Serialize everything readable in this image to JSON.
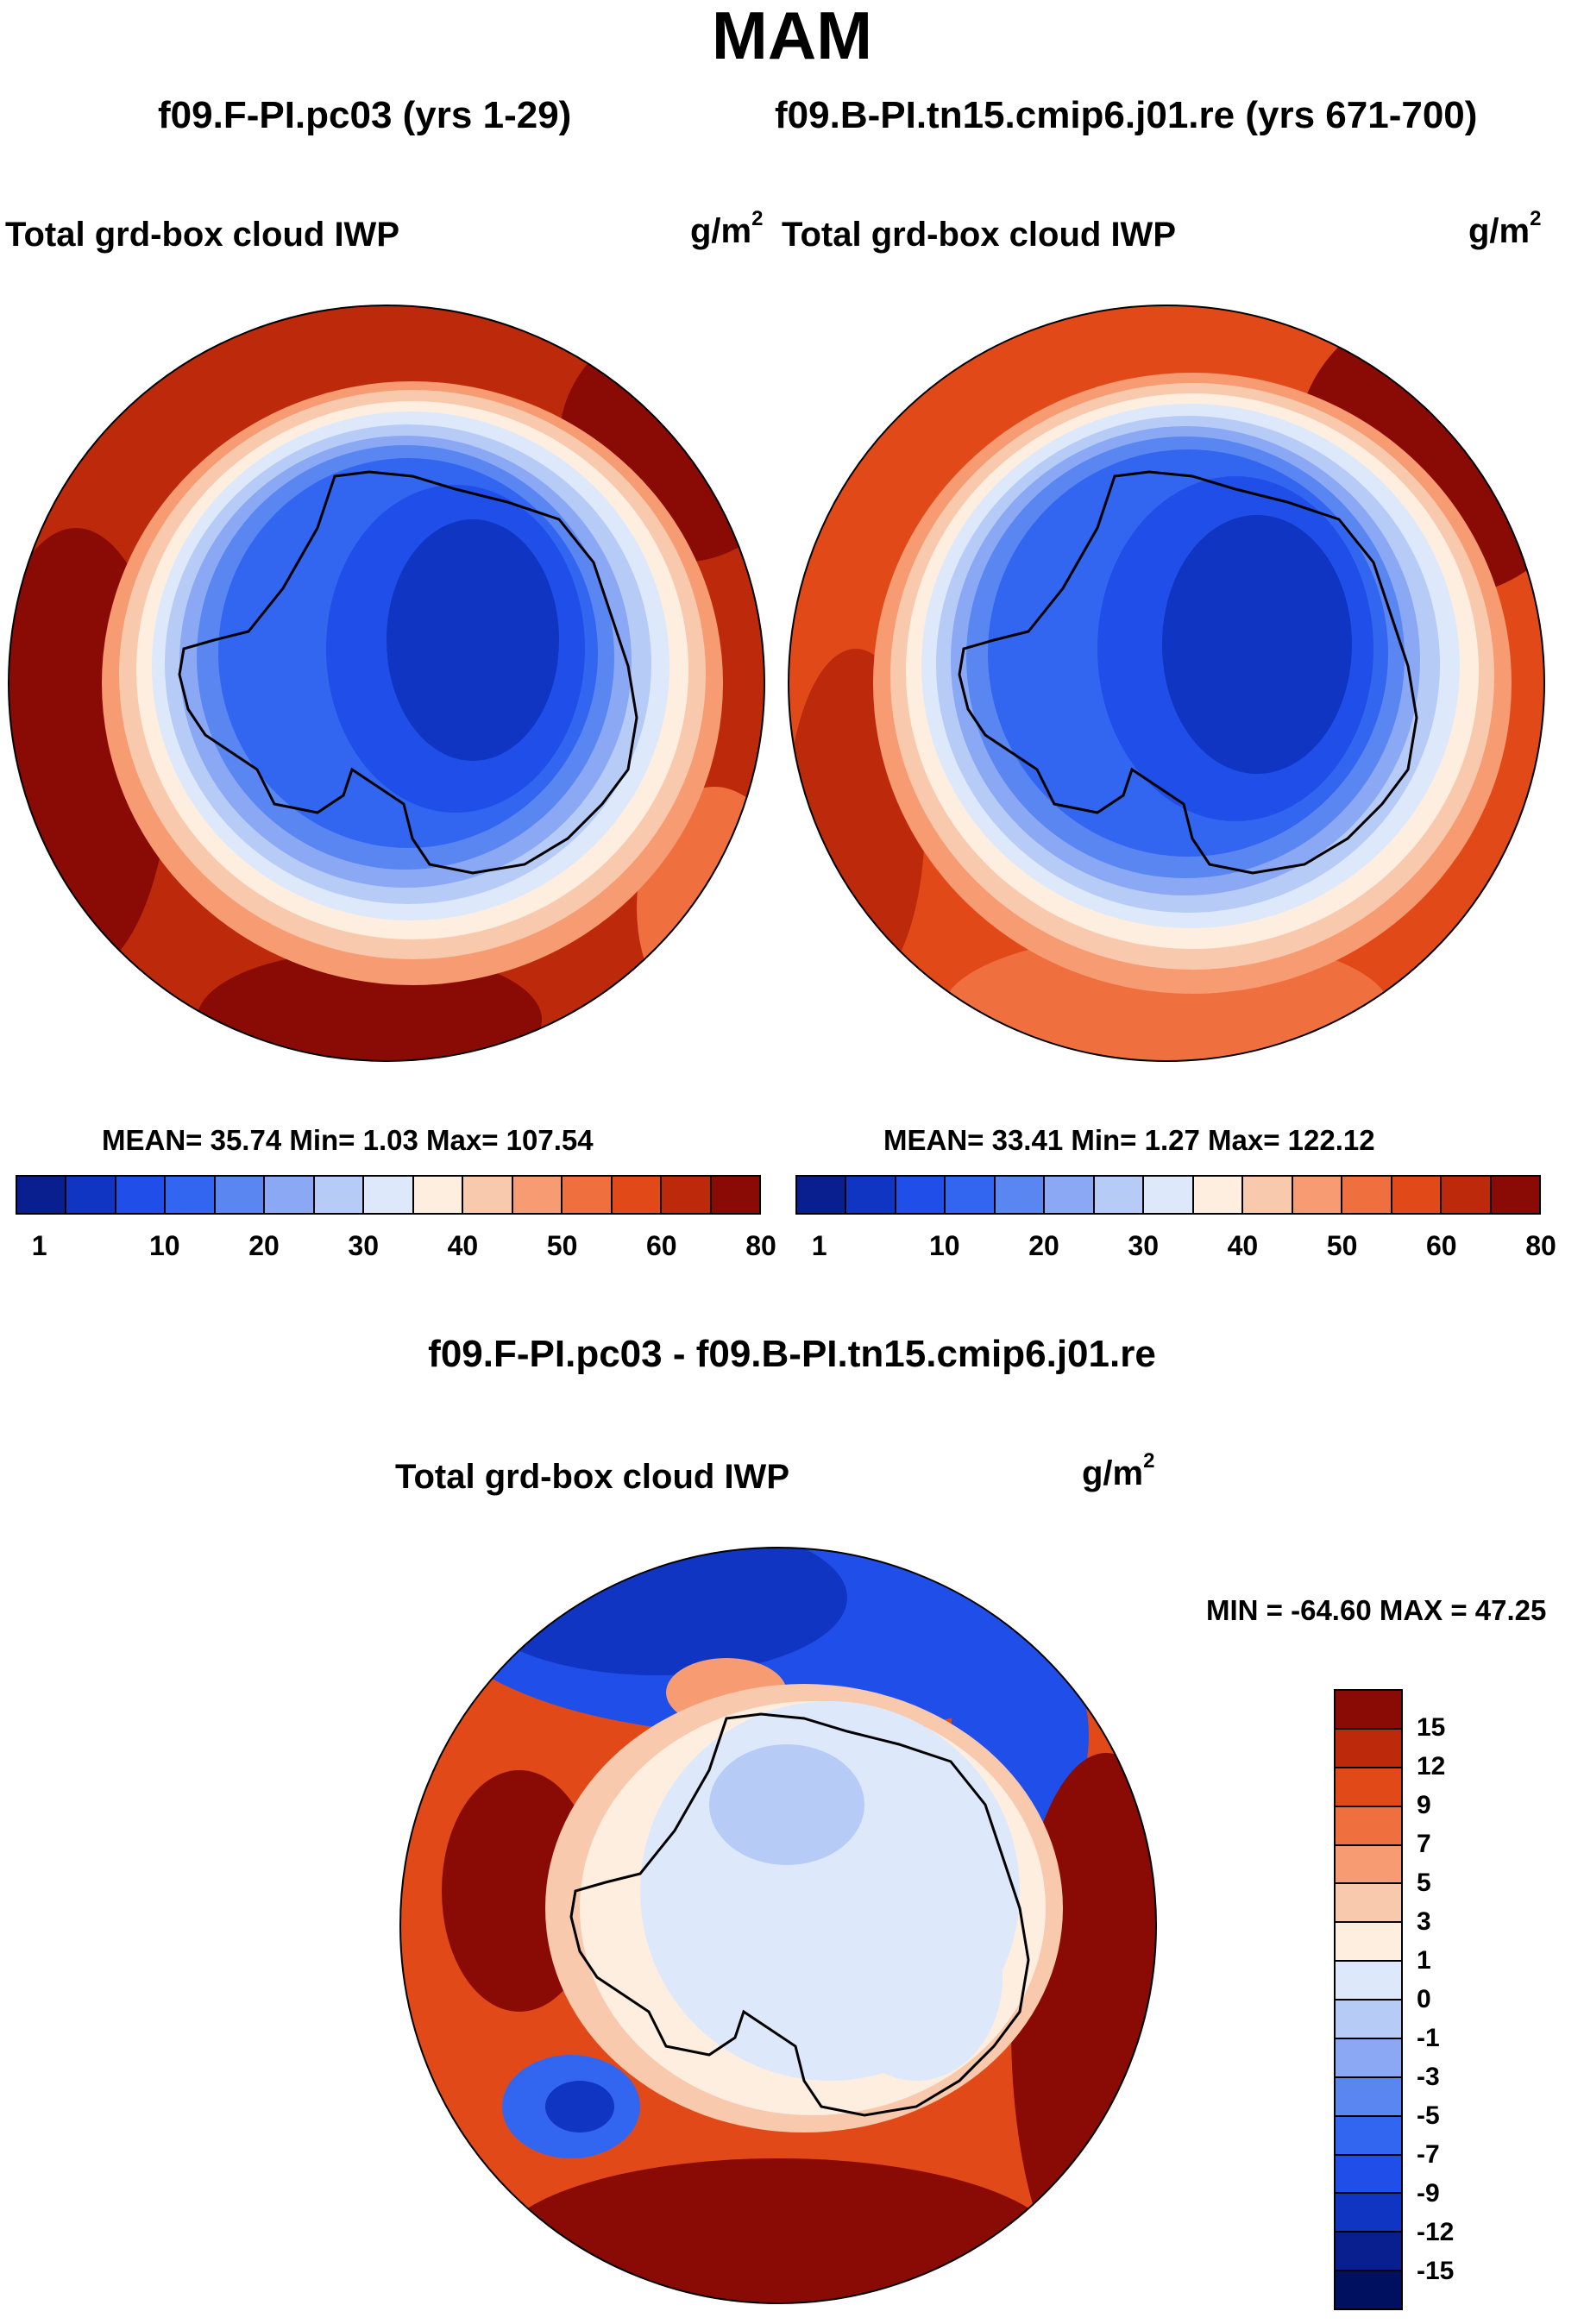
{
  "title": "MAM",
  "panels": [
    {
      "case_title": "f09.F-PI.pc03 (yrs 1-29)",
      "variable": "Total grd-box cloud IWP",
      "units_base": "g/m",
      "units_exp": "2",
      "stats": "MEAN=  35.74  Min=   1.03  Max= 107.54",
      "colorbar_ticks": [
        "1",
        "10",
        "20",
        "30",
        "40",
        "50",
        "60",
        "80"
      ]
    },
    {
      "case_title": "f09.B-PI.tn15.cmip6.j01.re (yrs 671-700)",
      "variable": "Total grd-box cloud IWP",
      "units_base": "g/m",
      "units_exp": "2",
      "stats": "MEAN=  33.41  Min=   1.27  Max= 122.12",
      "colorbar_ticks": [
        "1",
        "10",
        "20",
        "30",
        "40",
        "50",
        "60",
        "80"
      ]
    }
  ],
  "diff_panel": {
    "case_title": "f09.F-PI.pc03 - f09.B-PI.tn15.cmip6.j01.re",
    "variable": "Total grd-box cloud IWP",
    "units_base": "g/m",
    "units_exp": "2",
    "stats": "MIN = -64.60 MAX =  47.25",
    "colorbar_ticks": [
      "15",
      "12",
      "9",
      "7",
      "5",
      "3",
      "1",
      "0",
      "-1",
      "-3",
      "-5",
      "-7",
      "-9",
      "-12",
      "-15"
    ]
  },
  "colors": {
    "abs_scale": [
      "#0a1f8f",
      "#0f35c2",
      "#1f4fe8",
      "#3366f0",
      "#5a86f2",
      "#8aa8f4",
      "#b7cbf7",
      "#dde8fb",
      "#fdeee0",
      "#f9c9ad",
      "#f69b72",
      "#f06f3e",
      "#e14a18",
      "#bd2a0b",
      "#8a0a05"
    ],
    "diff_scale": [
      "#8a0a05",
      "#bd2a0b",
      "#e14a18",
      "#f06f3e",
      "#f69b72",
      "#f9c9ad",
      "#fdeee0",
      "#dde8fb",
      "#b7cbf7",
      "#8aa8f4",
      "#5a86f2",
      "#3366f0",
      "#1f4fe8",
      "#0f35c2",
      "#0a1f8f",
      "#001060"
    ]
  }
}
